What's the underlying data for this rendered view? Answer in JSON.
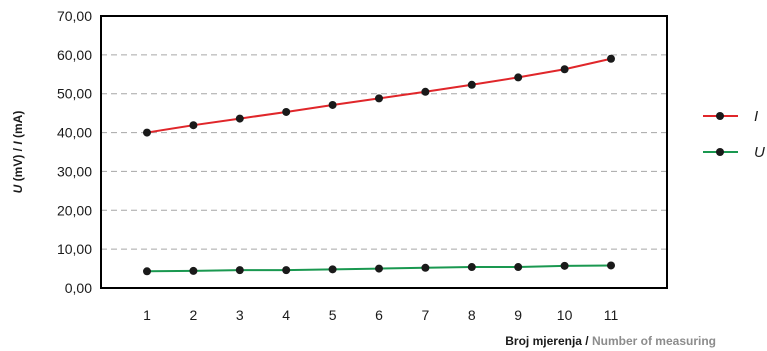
{
  "chart_data": {
    "type": "line",
    "x": [
      1,
      2,
      3,
      4,
      5,
      6,
      7,
      8,
      9,
      10,
      11
    ],
    "categories": [
      "1",
      "2",
      "3",
      "4",
      "5",
      "6",
      "7",
      "8",
      "9",
      "10",
      "11"
    ],
    "ylim": [
      0,
      70
    ],
    "yticks": [
      "0,00",
      "10,00",
      "20,00",
      "30,00",
      "40,00",
      "50,00",
      "60,00",
      "70,00"
    ],
    "ytick_values": [
      0,
      10,
      20,
      30,
      40,
      50,
      60,
      70
    ],
    "ylabel": {
      "var1": "U",
      "unit1": " (mV) / ",
      "var2": "I",
      "unit2": " (mA)"
    },
    "xlabel": {
      "main": "Broj mjerenja / ",
      "alt": "Number of measuring"
    },
    "grid": "horizontal-dashed",
    "legend_position": "right",
    "series": [
      {
        "name": "I",
        "color": "#e0262a",
        "values": [
          40.0,
          41.9,
          43.6,
          45.3,
          47.1,
          48.8,
          50.5,
          52.3,
          54.2,
          56.3,
          59.0
        ]
      },
      {
        "name": "U",
        "color": "#1a9850",
        "values": [
          4.3,
          4.4,
          4.6,
          4.6,
          4.8,
          5.0,
          5.2,
          5.4,
          5.4,
          5.7,
          5.8
        ]
      }
    ]
  }
}
